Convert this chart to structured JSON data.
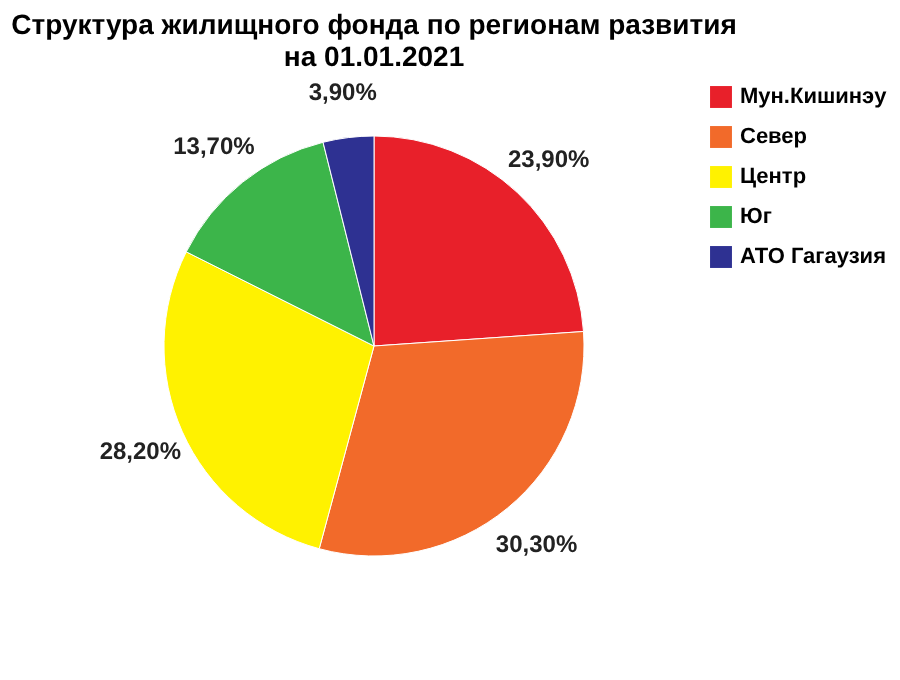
{
  "chart_data": {
    "type": "pie",
    "title": [
      "Структура жилищного фонда по регионам развития",
      "на 01.01.2021"
    ],
    "categories": [
      "Мун.Кишинэу",
      "Север",
      "Центр",
      "Юг",
      "АТО Гагаузия"
    ],
    "values": [
      23.9,
      30.3,
      28.2,
      13.7,
      3.9
    ],
    "colors": [
      "#e8202a",
      "#f26a2a",
      "#fff200",
      "#3cb54a",
      "#2e3192"
    ],
    "value_labels": [
      "23,90%",
      "30,30%",
      "28,20%",
      "13,70%",
      "3,90%"
    ],
    "legend": "right"
  }
}
